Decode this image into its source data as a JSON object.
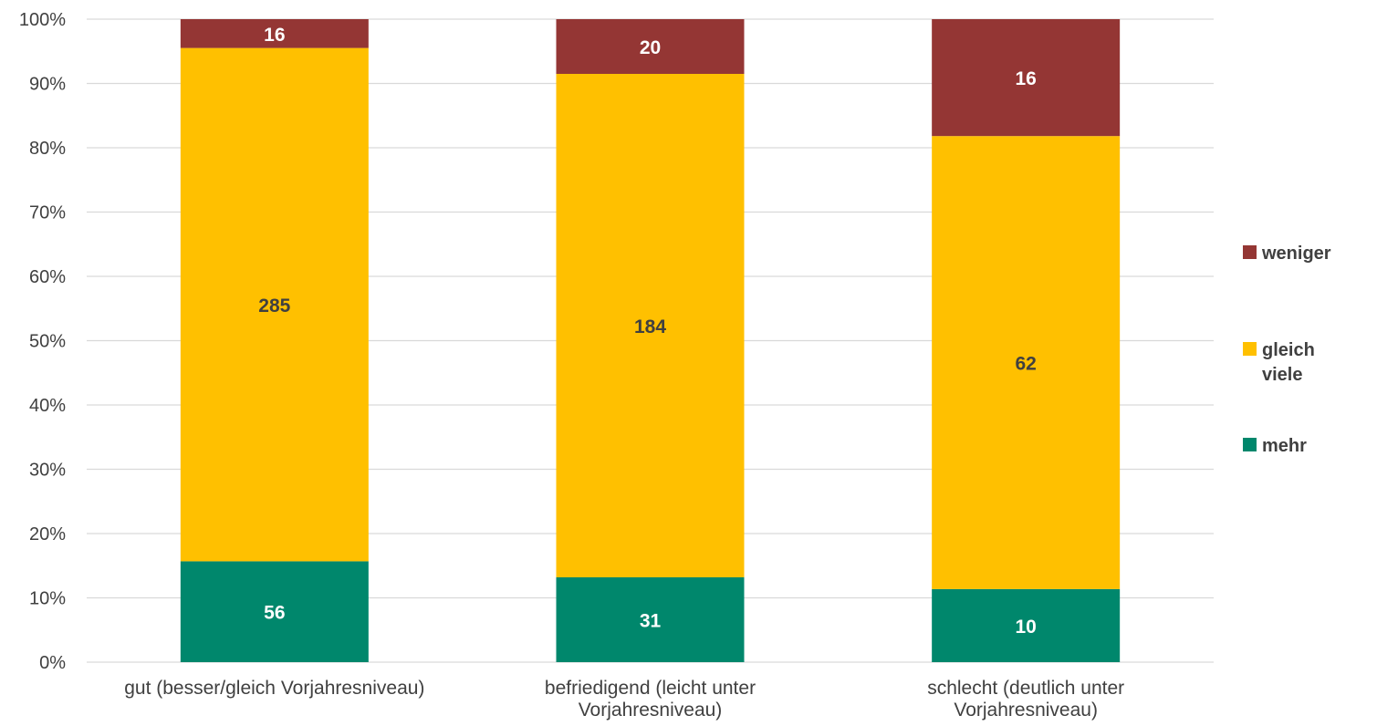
{
  "chart_data": {
    "type": "bar",
    "stacked": "percent",
    "categories": [
      [
        "gut (besser/gleich Vorjahresniveau)"
      ],
      [
        "befriedigend (leicht unter",
        "Vorjahresniveau)"
      ],
      [
        "schlecht (deutlich unter",
        "Vorjahresniveau)"
      ]
    ],
    "series": [
      {
        "name": "mehr",
        "values": [
          56,
          31,
          10
        ],
        "color": "#00876C",
        "label_color": "#FFFFFF"
      },
      {
        "name": "gleich viele",
        "values": [
          285,
          184,
          62
        ],
        "color": "#FFC000",
        "label_color": "#404040"
      },
      {
        "name": "weniger",
        "values": [
          16,
          20,
          16
        ],
        "color": "#943634",
        "label_color": "#FFFFFF"
      }
    ],
    "legend": [
      {
        "name": [
          "weniger"
        ],
        "color": "#943634"
      },
      {
        "name": [
          "gleich",
          "viele"
        ],
        "color": "#FFC000"
      },
      {
        "name": [
          "mehr"
        ],
        "color": "#00876C"
      }
    ],
    "y_ticks": [
      "0%",
      "10%",
      "20%",
      "30%",
      "40%",
      "50%",
      "60%",
      "70%",
      "80%",
      "90%",
      "100%"
    ],
    "ylim": [
      0,
      100
    ],
    "grid": true,
    "legend_position": "right"
  }
}
